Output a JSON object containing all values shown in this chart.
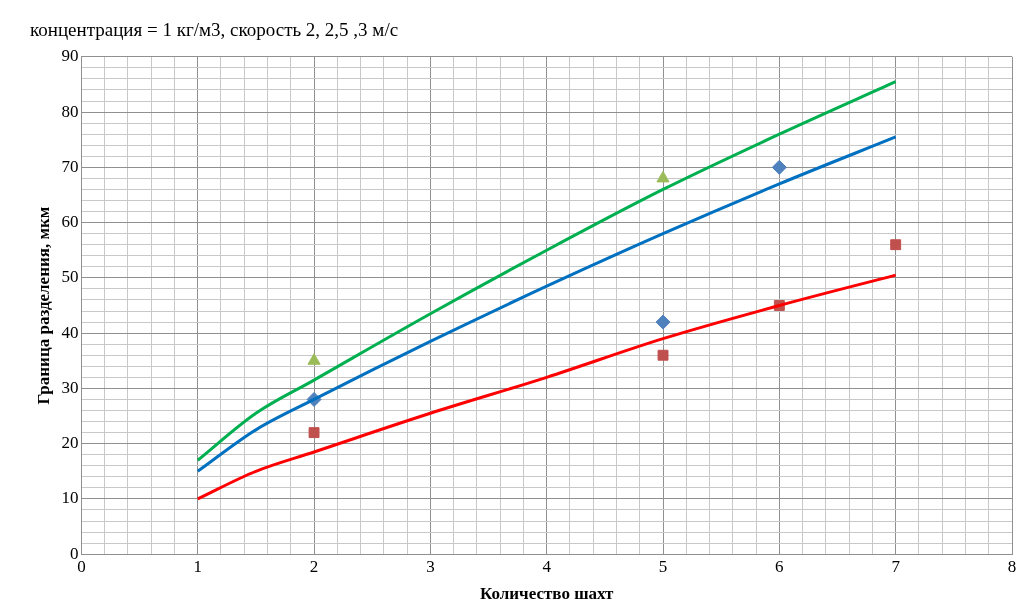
{
  "chart_data": {
    "type": "line",
    "title": "концентрация = 1 кг/м3, скорость 2, 2,5 ,3 м/с",
    "xlabel": "Количество шахт",
    "ylabel": "Граница разделения, мкм",
    "series": [
      {
        "color": "#00b050",
        "x": [
          1,
          1.5,
          2,
          3,
          4,
          5,
          6,
          7
        ],
        "values": [
          17,
          25.5,
          31.5,
          43.5,
          55,
          66,
          76,
          85.5
        ],
        "marker": "none"
      },
      {
        "color": "#0070c0",
        "x": [
          1,
          1.5,
          2,
          3,
          4,
          5,
          6,
          7
        ],
        "values": [
          15,
          22.5,
          28,
          38.5,
          48.5,
          58,
          67,
          75.5
        ],
        "marker": "none"
      },
      {
        "color": "#ff0000",
        "x": [
          1,
          1.5,
          2,
          3,
          4,
          5,
          6,
          7
        ],
        "values": [
          10,
          15,
          18.5,
          25.5,
          32,
          39,
          45,
          50.5
        ],
        "marker": "none"
      },
      {
        "type": "scatter",
        "color": "#4f81bd",
        "x": [
          2,
          5,
          6
        ],
        "values": [
          28,
          42,
          70
        ],
        "marker": "diamond"
      },
      {
        "type": "scatter",
        "color": "#c0504d",
        "x": [
          2,
          5,
          6,
          7
        ],
        "values": [
          22,
          36,
          45,
          56
        ],
        "marker": "square"
      },
      {
        "type": "scatter",
        "color": "#9bbb59",
        "x": [
          2,
          5
        ],
        "values": [
          35,
          68
        ],
        "marker": "triangle"
      }
    ],
    "xlim": [
      0,
      8
    ],
    "xticks": [
      0,
      {
        "value": 0.2,
        "label": null
      },
      {
        "value": 0.4,
        "label": null
      },
      {
        "value": 0.6,
        "label": null
      },
      {
        "value": 0.8,
        "label": null
      },
      1,
      {
        "value": 1.2,
        "label": null
      },
      {
        "value": 1.4,
        "label": null
      },
      {
        "value": 1.6,
        "label": null
      },
      {
        "value": 1.8,
        "label": null
      },
      2,
      {
        "value": 2.2,
        "label": null
      },
      {
        "value": 2.4,
        "label": null
      },
      {
        "value": 2.6,
        "label": null
      },
      {
        "value": 2.8,
        "label": null
      },
      3,
      {
        "value": 3.2,
        "label": null
      },
      {
        "value": 3.4,
        "label": null
      },
      {
        "value": 3.6,
        "label": null
      },
      {
        "value": 3.8,
        "label": null
      },
      4,
      {
        "value": 4.2,
        "label": null
      },
      {
        "value": 4.4,
        "label": null
      },
      {
        "value": 4.6,
        "label": null
      },
      {
        "value": 4.8,
        "label": null
      },
      5,
      {
        "value": 5.2,
        "label": null
      },
      {
        "value": 5.4,
        "label": null
      },
      {
        "value": 5.6,
        "label": null
      },
      {
        "value": 5.8,
        "label": null
      },
      6,
      {
        "value": 6.2,
        "label": null
      },
      {
        "value": 6.4,
        "label": null
      },
      {
        "value": 6.6,
        "label": null
      },
      {
        "value": 6.8,
        "label": null
      },
      7,
      {
        "value": 7.2,
        "label": null
      },
      {
        "value": 7.4,
        "label": null
      },
      {
        "value": 7.6,
        "label": null
      },
      {
        "value": 7.8,
        "label": null
      },
      8
    ],
    "ylim": [
      0,
      90
    ],
    "yticks": [
      0,
      {
        "value": 2,
        "label": null
      },
      {
        "value": 4,
        "label": null
      },
      {
        "value": 6,
        "label": null
      },
      {
        "value": 8,
        "label": null
      },
      10,
      {
        "value": 12,
        "label": null
      },
      {
        "value": 14,
        "label": null
      },
      {
        "value": 16,
        "label": null
      },
      {
        "value": 18,
        "label": null
      },
      20,
      {
        "value": 22,
        "label": null
      },
      {
        "value": 24,
        "label": null
      },
      {
        "value": 26,
        "label": null
      },
      {
        "value": 28,
        "label": null
      },
      30,
      {
        "value": 32,
        "label": null
      },
      {
        "value": 34,
        "label": null
      },
      {
        "value": 36,
        "label": null
      },
      {
        "value": 38,
        "label": null
      },
      40,
      {
        "value": 42,
        "label": null
      },
      {
        "value": 44,
        "label": null
      },
      {
        "value": 46,
        "label": null
      },
      {
        "value": 48,
        "label": null
      },
      50,
      {
        "value": 52,
        "label": null
      },
      {
        "value": 54,
        "label": null
      },
      {
        "value": 56,
        "label": null
      },
      {
        "value": 58,
        "label": null
      },
      60,
      {
        "value": 62,
        "label": null
      },
      {
        "value": 64,
        "label": null
      },
      {
        "value": 66,
        "label": null
      },
      {
        "value": 68,
        "label": null
      },
      70,
      {
        "value": 72,
        "label": null
      },
      {
        "value": 74,
        "label": null
      },
      {
        "value": 76,
        "label": null
      },
      {
        "value": 78,
        "label": null
      },
      80,
      {
        "value": 82,
        "label": null
      },
      {
        "value": 84,
        "label": null
      },
      {
        "value": 86,
        "label": null
      },
      {
        "value": 88,
        "label": null
      },
      90
    ],
    "grid": true,
    "legend": false
  }
}
